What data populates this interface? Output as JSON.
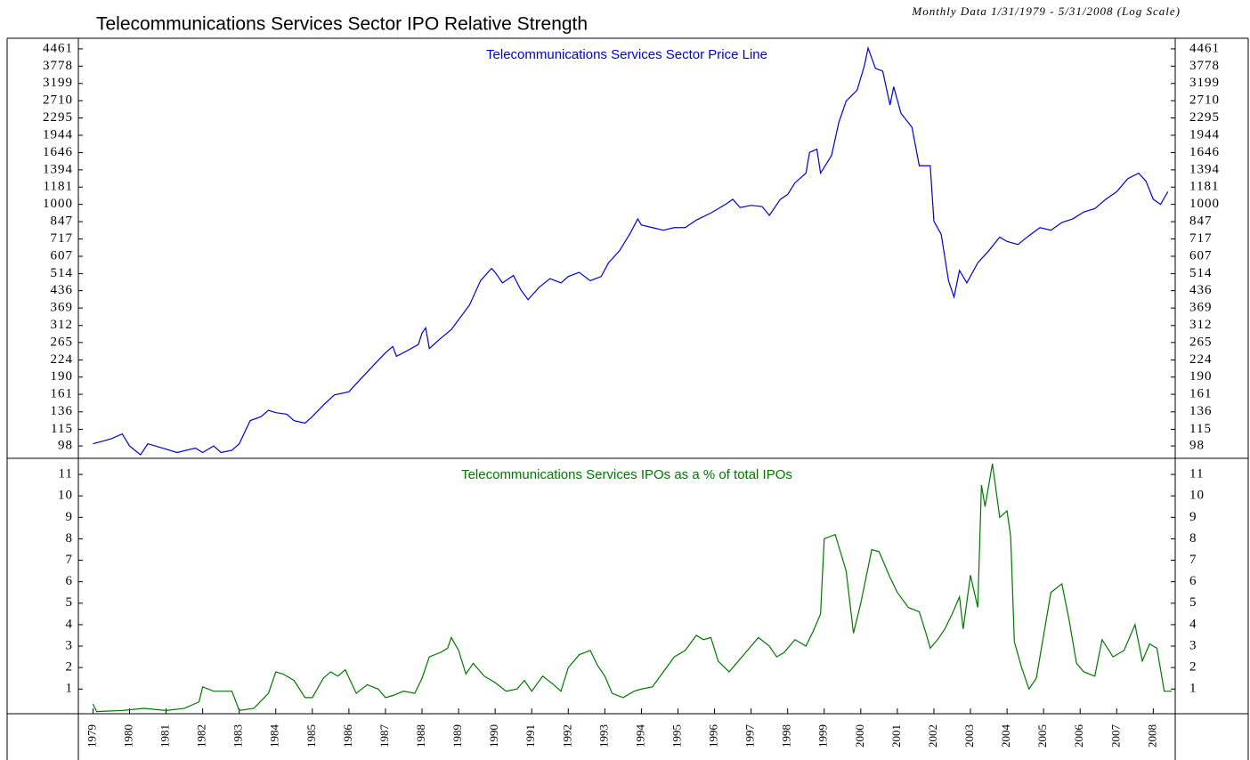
{
  "header": {
    "title": "Telecommunications Services Sector IPO Relative Strength",
    "subtitle": "Monthly Data 1/31/1979 - 5/31/2008 (Log Scale)"
  },
  "chart_data": [
    {
      "type": "line",
      "log_scale": true,
      "x": [
        1979.0,
        1979.5,
        1979.8,
        1980.0,
        1980.3,
        1980.5,
        1981.0,
        1981.3,
        1981.8,
        1982.0,
        1982.3,
        1982.5,
        1982.8,
        1983.0,
        1983.3,
        1983.6,
        1983.8,
        1984.0,
        1984.3,
        1984.5,
        1984.8,
        1985.0,
        1985.3,
        1985.6,
        1986.0,
        1986.3,
        1986.7,
        1987.0,
        1987.2,
        1987.3,
        1987.6,
        1987.9,
        1988.0,
        1988.1,
        1988.2,
        1988.5,
        1988.8,
        1989.0,
        1989.3,
        1989.6,
        1989.9,
        1990.0,
        1990.2,
        1990.5,
        1990.7,
        1990.9,
        1991.2,
        1991.5,
        1991.8,
        1992.0,
        1992.3,
        1992.6,
        1992.9,
        1993.1,
        1993.4,
        1993.7,
        1993.9,
        1994.0,
        1994.3,
        1994.6,
        1994.9,
        1995.2,
        1995.5,
        1995.9,
        1996.3,
        1996.5,
        1996.7,
        1997.0,
        1997.3,
        1997.5,
        1997.8,
        1998.0,
        1998.2,
        1998.5,
        1998.6,
        1998.8,
        1998.9,
        1999.2,
        1999.4,
        1999.6,
        1999.9,
        2000.1,
        2000.2,
        2000.4,
        2000.6,
        2000.8,
        2000.9,
        2001.1,
        2001.4,
        2001.6,
        2001.9,
        2002.0,
        2002.2,
        2002.4,
        2002.55,
        2002.7,
        2002.9,
        2003.2,
        2003.5,
        2003.8,
        2004.0,
        2004.3,
        2004.6,
        2004.9,
        2005.2,
        2005.5,
        2005.8,
        2006.1,
        2006.4,
        2006.7,
        2007.0,
        2007.3,
        2007.6,
        2007.8,
        2008.0,
        2008.2,
        2008.4
      ],
      "series": [
        {
          "name": "Telecommunications Services Sector Price Line",
          "color": "#0000cc",
          "values": [
            100,
            105,
            110,
            98,
            90,
            100,
            95,
            92,
            96,
            92,
            98,
            92,
            94,
            100,
            125,
            130,
            138,
            135,
            133,
            125,
            122,
            130,
            145,
            160,
            165,
            185,
            215,
            240,
            255,
            232,
            245,
            260,
            290,
            305,
            250,
            275,
            300,
            330,
            380,
            480,
            540,
            520,
            470,
            505,
            440,
            400,
            450,
            490,
            470,
            500,
            520,
            480,
            500,
            570,
            640,
            760,
            870,
            820,
            800,
            780,
            800,
            800,
            860,
            920,
            1000,
            1050,
            970,
            990,
            980,
            900,
            1050,
            1100,
            1230,
            1350,
            1650,
            1700,
            1350,
            1600,
            2200,
            2700,
            3000,
            3800,
            4500,
            3700,
            3600,
            2600,
            3100,
            2400,
            2100,
            1450,
            1450,
            850,
            750,
            480,
            410,
            530,
            470,
            570,
            640,
            730,
            700,
            680,
            740,
            800,
            780,
            840,
            870,
            930,
            960,
            1050,
            1130,
            1280,
            1350,
            1250,
            1050,
            1000,
            1130
          ]
        }
      ],
      "xlim": [
        1978.6,
        2008.6
      ],
      "ylim": [
        87,
        4940
      ],
      "yticks": [
        98,
        115,
        136,
        161,
        190,
        224,
        265,
        312,
        369,
        436,
        514,
        607,
        717,
        847,
        1000,
        1181,
        1394,
        1646,
        1944,
        2295,
        2710,
        3199,
        3778,
        4461
      ]
    },
    {
      "type": "line",
      "x": [
        1979.0,
        1979.1,
        1979.8,
        1980.4,
        1981.0,
        1981.5,
        1981.9,
        1982.0,
        1982.3,
        1982.8,
        1983.0,
        1983.4,
        1983.8,
        1984.0,
        1984.2,
        1984.5,
        1984.8,
        1985.0,
        1985.3,
        1985.5,
        1985.7,
        1985.9,
        1986.2,
        1986.5,
        1986.8,
        1987.0,
        1987.2,
        1987.5,
        1987.8,
        1988.0,
        1988.2,
        1988.5,
        1988.7,
        1988.8,
        1989.0,
        1989.2,
        1989.4,
        1989.7,
        1990.0,
        1990.3,
        1990.6,
        1990.8,
        1991.0,
        1991.3,
        1991.6,
        1991.8,
        1992.0,
        1992.3,
        1992.6,
        1992.8,
        1993.0,
        1993.2,
        1993.5,
        1993.8,
        1994.0,
        1994.3,
        1994.6,
        1994.9,
        1995.2,
        1995.5,
        1995.7,
        1995.9,
        1996.1,
        1996.4,
        1996.6,
        1996.9,
        1997.2,
        1997.5,
        1997.7,
        1997.9,
        1998.2,
        1998.5,
        1998.7,
        1998.9,
        1999.0,
        1999.3,
        1999.6,
        1999.8,
        2000.0,
        2000.3,
        2000.5,
        2000.8,
        2001.0,
        2001.3,
        2001.6,
        2001.8,
        2001.9,
        2002.1,
        2002.3,
        2002.5,
        2002.7,
        2002.8,
        2003.0,
        2003.2,
        2003.3,
        2003.4,
        2003.6,
        2003.8,
        2004.0,
        2004.1,
        2004.2,
        2004.4,
        2004.6,
        2004.8,
        2005.0,
        2005.2,
        2005.5,
        2005.7,
        2005.9,
        2006.1,
        2006.4,
        2006.6,
        2006.9,
        2007.2,
        2007.5,
        2007.7,
        2007.9,
        2008.1,
        2008.3,
        2008.5
      ],
      "series": [
        {
          "name": "Telecommunications Services IPOs as a % of total IPOs",
          "color": "#007700",
          "values": [
            0.3,
            -0.05,
            0,
            0.1,
            0,
            0.1,
            0.4,
            1.1,
            0.9,
            0.9,
            0,
            0.1,
            0.8,
            1.8,
            1.7,
            1.4,
            0.6,
            0.6,
            1.5,
            1.8,
            1.6,
            1.9,
            0.8,
            1.2,
            1.0,
            0.6,
            0.7,
            0.9,
            0.8,
            1.5,
            2.5,
            2.7,
            2.9,
            3.4,
            2.8,
            1.7,
            2.2,
            1.6,
            1.3,
            0.9,
            1.0,
            1.4,
            0.9,
            1.6,
            1.2,
            0.9,
            2.0,
            2.6,
            2.8,
            2.1,
            1.6,
            0.8,
            0.6,
            0.9,
            1.0,
            1.1,
            1.8,
            2.5,
            2.8,
            3.5,
            3.3,
            3.4,
            2.3,
            1.8,
            2.2,
            2.8,
            3.4,
            3.0,
            2.5,
            2.7,
            3.3,
            3.0,
            3.7,
            4.5,
            8.0,
            8.2,
            6.5,
            3.6,
            5.0,
            7.5,
            7.4,
            6.2,
            5.5,
            4.8,
            4.6,
            3.5,
            2.9,
            3.3,
            3.8,
            4.5,
            5.3,
            3.8,
            6.3,
            4.8,
            10.5,
            9.5,
            11.5,
            9.0,
            9.3,
            8.1,
            3.2,
            2.0,
            1.0,
            1.5,
            3.5,
            5.5,
            5.9,
            4.2,
            2.2,
            1.8,
            1.6,
            3.3,
            2.5,
            2.8,
            4.0,
            2.3,
            3.1,
            2.9,
            0.9,
            0.9
          ]
        }
      ],
      "xlim": [
        1978.6,
        2008.6
      ],
      "ylim": [
        -0.15,
        11.75
      ],
      "yticks": [
        1,
        2,
        3,
        4,
        5,
        6,
        7,
        8,
        9,
        10,
        11
      ],
      "xticks": [
        1979,
        1980,
        1981,
        1982,
        1983,
        1984,
        1985,
        1986,
        1987,
        1988,
        1989,
        1990,
        1991,
        1992,
        1993,
        1994,
        1995,
        1996,
        1997,
        1998,
        1999,
        2000,
        2001,
        2002,
        2003,
        2004,
        2005,
        2006,
        2007,
        2008
      ]
    }
  ]
}
